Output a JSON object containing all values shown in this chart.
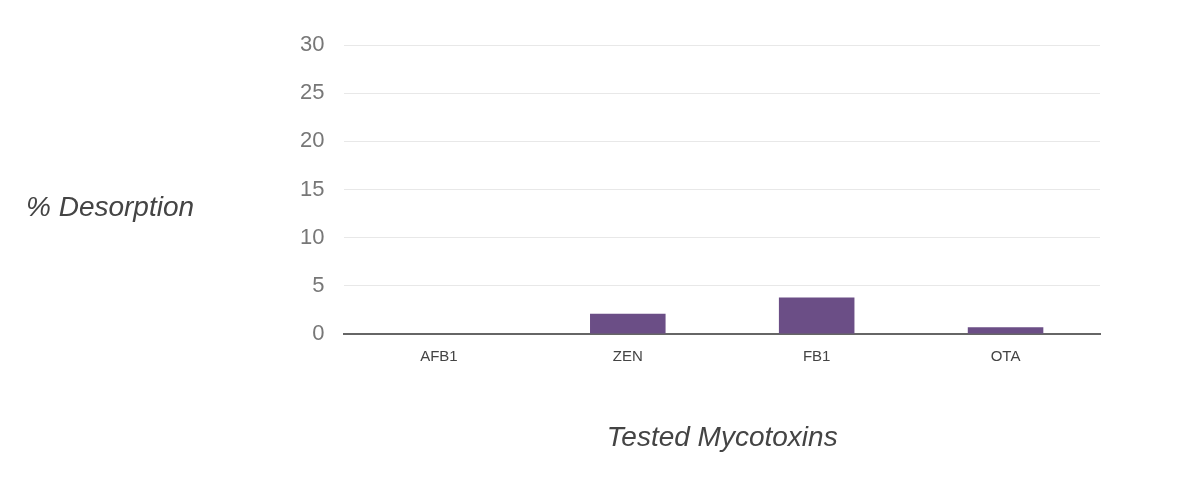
{
  "chart_data": {
    "type": "bar",
    "xlabel": "Tested Mycotoxins",
    "ylabel": "% Desorption",
    "categories": [
      "AFB1",
      "ZEN",
      "FB1",
      "OTA"
    ],
    "values": [
      0,
      2.1,
      3.8,
      0.7
    ],
    "color": "#6b4e86",
    "ylim": [
      0,
      30
    ],
    "yticks": [
      0,
      5,
      10,
      15,
      20,
      25,
      30
    ],
    "grid": "y",
    "legend": false
  }
}
